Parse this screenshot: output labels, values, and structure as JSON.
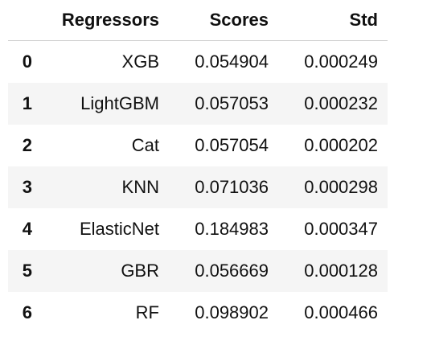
{
  "table": {
    "index_header": "",
    "columns": [
      "Regressors",
      "Scores",
      "Std"
    ],
    "rows": [
      {
        "index": "0",
        "cells": [
          "XGB",
          "0.054904",
          "0.000249"
        ]
      },
      {
        "index": "1",
        "cells": [
          "LightGBM",
          "0.057053",
          "0.000232"
        ]
      },
      {
        "index": "2",
        "cells": [
          "Cat",
          "0.057054",
          "0.000202"
        ]
      },
      {
        "index": "3",
        "cells": [
          "KNN",
          "0.071036",
          "0.000298"
        ]
      },
      {
        "index": "4",
        "cells": [
          "ElasticNet",
          "0.184983",
          "0.000347"
        ]
      },
      {
        "index": "5",
        "cells": [
          "GBR",
          "0.056669",
          "0.000128"
        ]
      },
      {
        "index": "6",
        "cells": [
          "RF",
          "0.098902",
          "0.000466"
        ]
      }
    ]
  },
  "colors": {
    "text": "#111111",
    "stripe": "#f5f5f5",
    "header_rule": "#cfcfcf",
    "background": "#ffffff"
  }
}
